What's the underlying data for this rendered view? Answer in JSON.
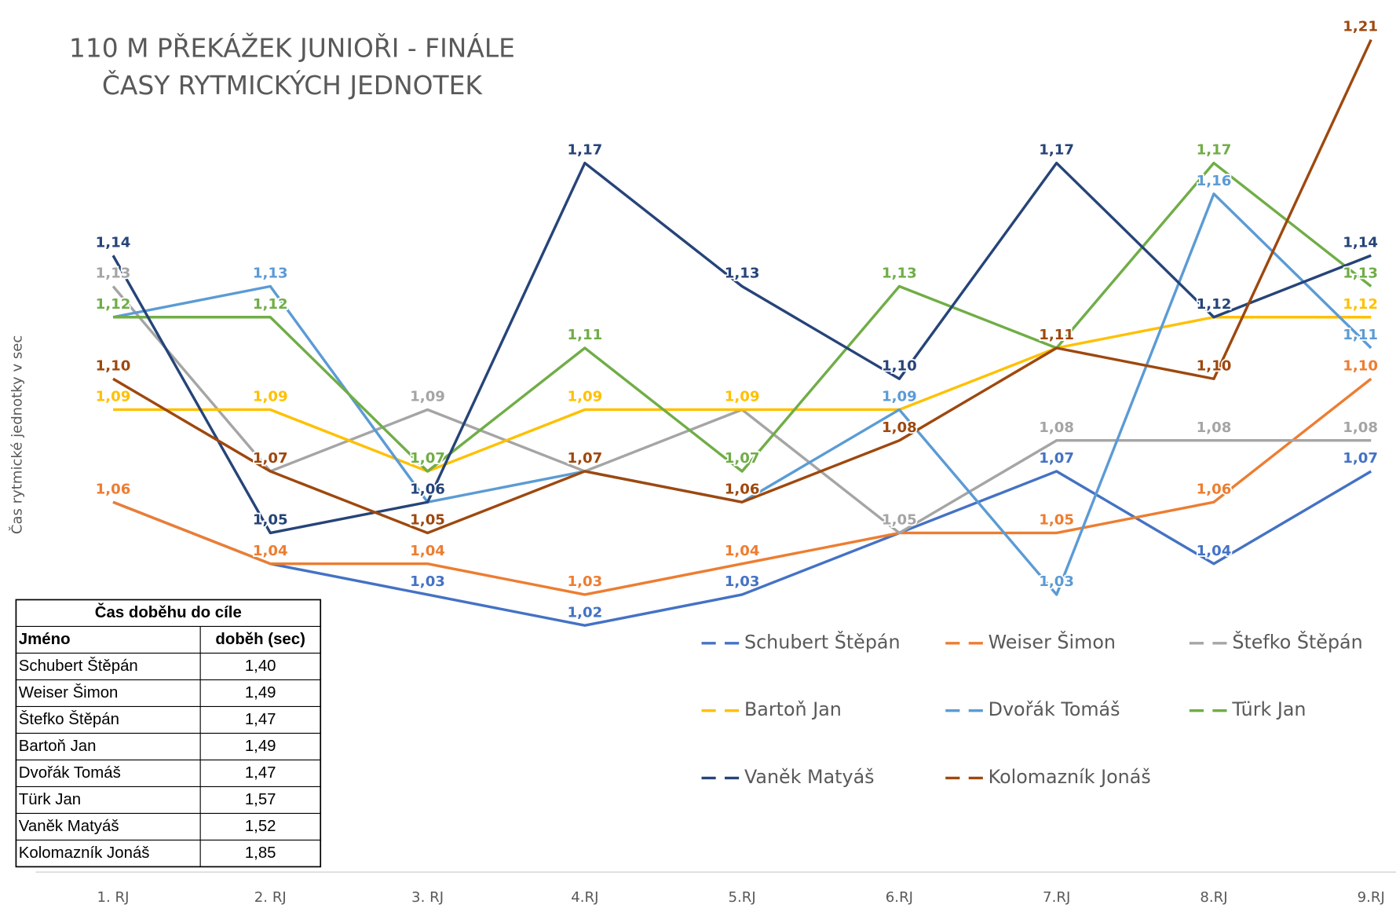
{
  "chart_data": {
    "type": "line",
    "title": [
      "110 M PŘEKÁŽEK JUNIOŘI - FINÁLE",
      "ČASY RYTMICKÝCH JEDNOTEK"
    ],
    "y_label": "Čas rytmické jednotky v sec",
    "categories": [
      "1. RJ",
      "2. RJ",
      "3. RJ",
      "4.RJ",
      "5.RJ",
      "6.RJ",
      "7.RJ",
      "8.RJ",
      "9.RJ"
    ],
    "ylim": [
      0.94,
      1.22
    ],
    "series": [
      {
        "name": "Schubert Štěpán",
        "color": "#4472c4",
        "values": [
          1.06,
          1.04,
          1.03,
          1.02,
          1.03,
          1.05,
          1.07,
          1.04,
          1.07
        ],
        "value_labels": [
          "1,06",
          "1,04",
          "1,03",
          "1,02",
          "1,03",
          "1,05",
          "1,07",
          "1,04",
          "1,07"
        ]
      },
      {
        "name": "Weiser Šimon",
        "color": "#ed7d31",
        "values": [
          1.06,
          1.04,
          1.04,
          1.03,
          1.04,
          1.05,
          1.05,
          1.06,
          1.1
        ],
        "value_labels": [
          "1,06",
          "1,04",
          "1,04",
          "1,03",
          "1,04",
          "1,05",
          "1,05",
          "1,06",
          "1,10"
        ]
      },
      {
        "name": "Štefko Štěpán",
        "color": "#a5a5a5",
        "values": [
          1.13,
          1.07,
          1.09,
          1.07,
          1.09,
          1.05,
          1.08,
          1.08,
          1.08
        ],
        "value_labels": [
          "1,13",
          "1,07",
          "1,09",
          "1,07",
          "1,09",
          "1,05",
          "1,08",
          "1,08",
          "1,08"
        ]
      },
      {
        "name": "Bartoň Jan",
        "color": "#ffc000",
        "values": [
          1.09,
          1.09,
          1.07,
          1.09,
          1.09,
          1.09,
          1.11,
          1.12,
          1.12
        ],
        "value_labels": [
          "1,09",
          "1,09",
          "1,07",
          "1,09",
          "1,09",
          "1,09",
          "1,11",
          "1,12",
          "1,12"
        ]
      },
      {
        "name": "Dvořák Tomáš",
        "color": "#5b9bd5",
        "values": [
          1.12,
          1.13,
          1.06,
          1.07,
          1.06,
          1.09,
          1.03,
          1.16,
          1.11
        ],
        "value_labels": [
          "1,12",
          "1,13",
          "1,06",
          "1,07",
          "1,06",
          "1,09",
          "1,03",
          "1,16",
          "1,11"
        ]
      },
      {
        "name": "Türk Jan",
        "color": "#70ad47",
        "values": [
          1.12,
          1.12,
          1.07,
          1.11,
          1.07,
          1.13,
          1.11,
          1.17,
          1.13
        ],
        "value_labels": [
          "1,12",
          "1,12",
          "1,07",
          "1,11",
          "1,07",
          "1,13",
          "1,11",
          "1,17",
          "1,13"
        ]
      },
      {
        "name": "Vaněk Matyáš",
        "color": "#264478",
        "values": [
          1.14,
          1.05,
          1.06,
          1.17,
          1.13,
          1.1,
          1.17,
          1.12,
          1.14
        ],
        "value_labels": [
          "1,14",
          "1,05",
          "1,06",
          "1,17",
          "1,13",
          "1,10",
          "1,17",
          "1,12",
          "1,14"
        ]
      },
      {
        "name": "Kolomazník Jonáš",
        "color": "#9e480e",
        "values": [
          1.1,
          1.07,
          1.05,
          1.07,
          1.06,
          1.08,
          1.11,
          1.1,
          1.21
        ],
        "value_labels": [
          "1,10",
          "1,07",
          "1,05",
          "1,07",
          "1,06",
          "1,08",
          "1,11",
          "1,10",
          "1,21"
        ]
      }
    ]
  },
  "table": {
    "title": "Čas doběhu do cíle",
    "header": [
      "Jméno",
      "doběh (sec)"
    ],
    "rows": [
      [
        "Schubert Štěpán",
        "1,40"
      ],
      [
        "Weiser Šimon",
        "1,49"
      ],
      [
        "Štefko Štěpán",
        "1,47"
      ],
      [
        "Bartoň Jan",
        "1,49"
      ],
      [
        "Dvořák Tomáš",
        "1,47"
      ],
      [
        "Türk Jan",
        "1,57"
      ],
      [
        "Vaněk Matyáš",
        "1,52"
      ],
      [
        "Kolomazník Jonáš",
        "1,85"
      ]
    ]
  }
}
